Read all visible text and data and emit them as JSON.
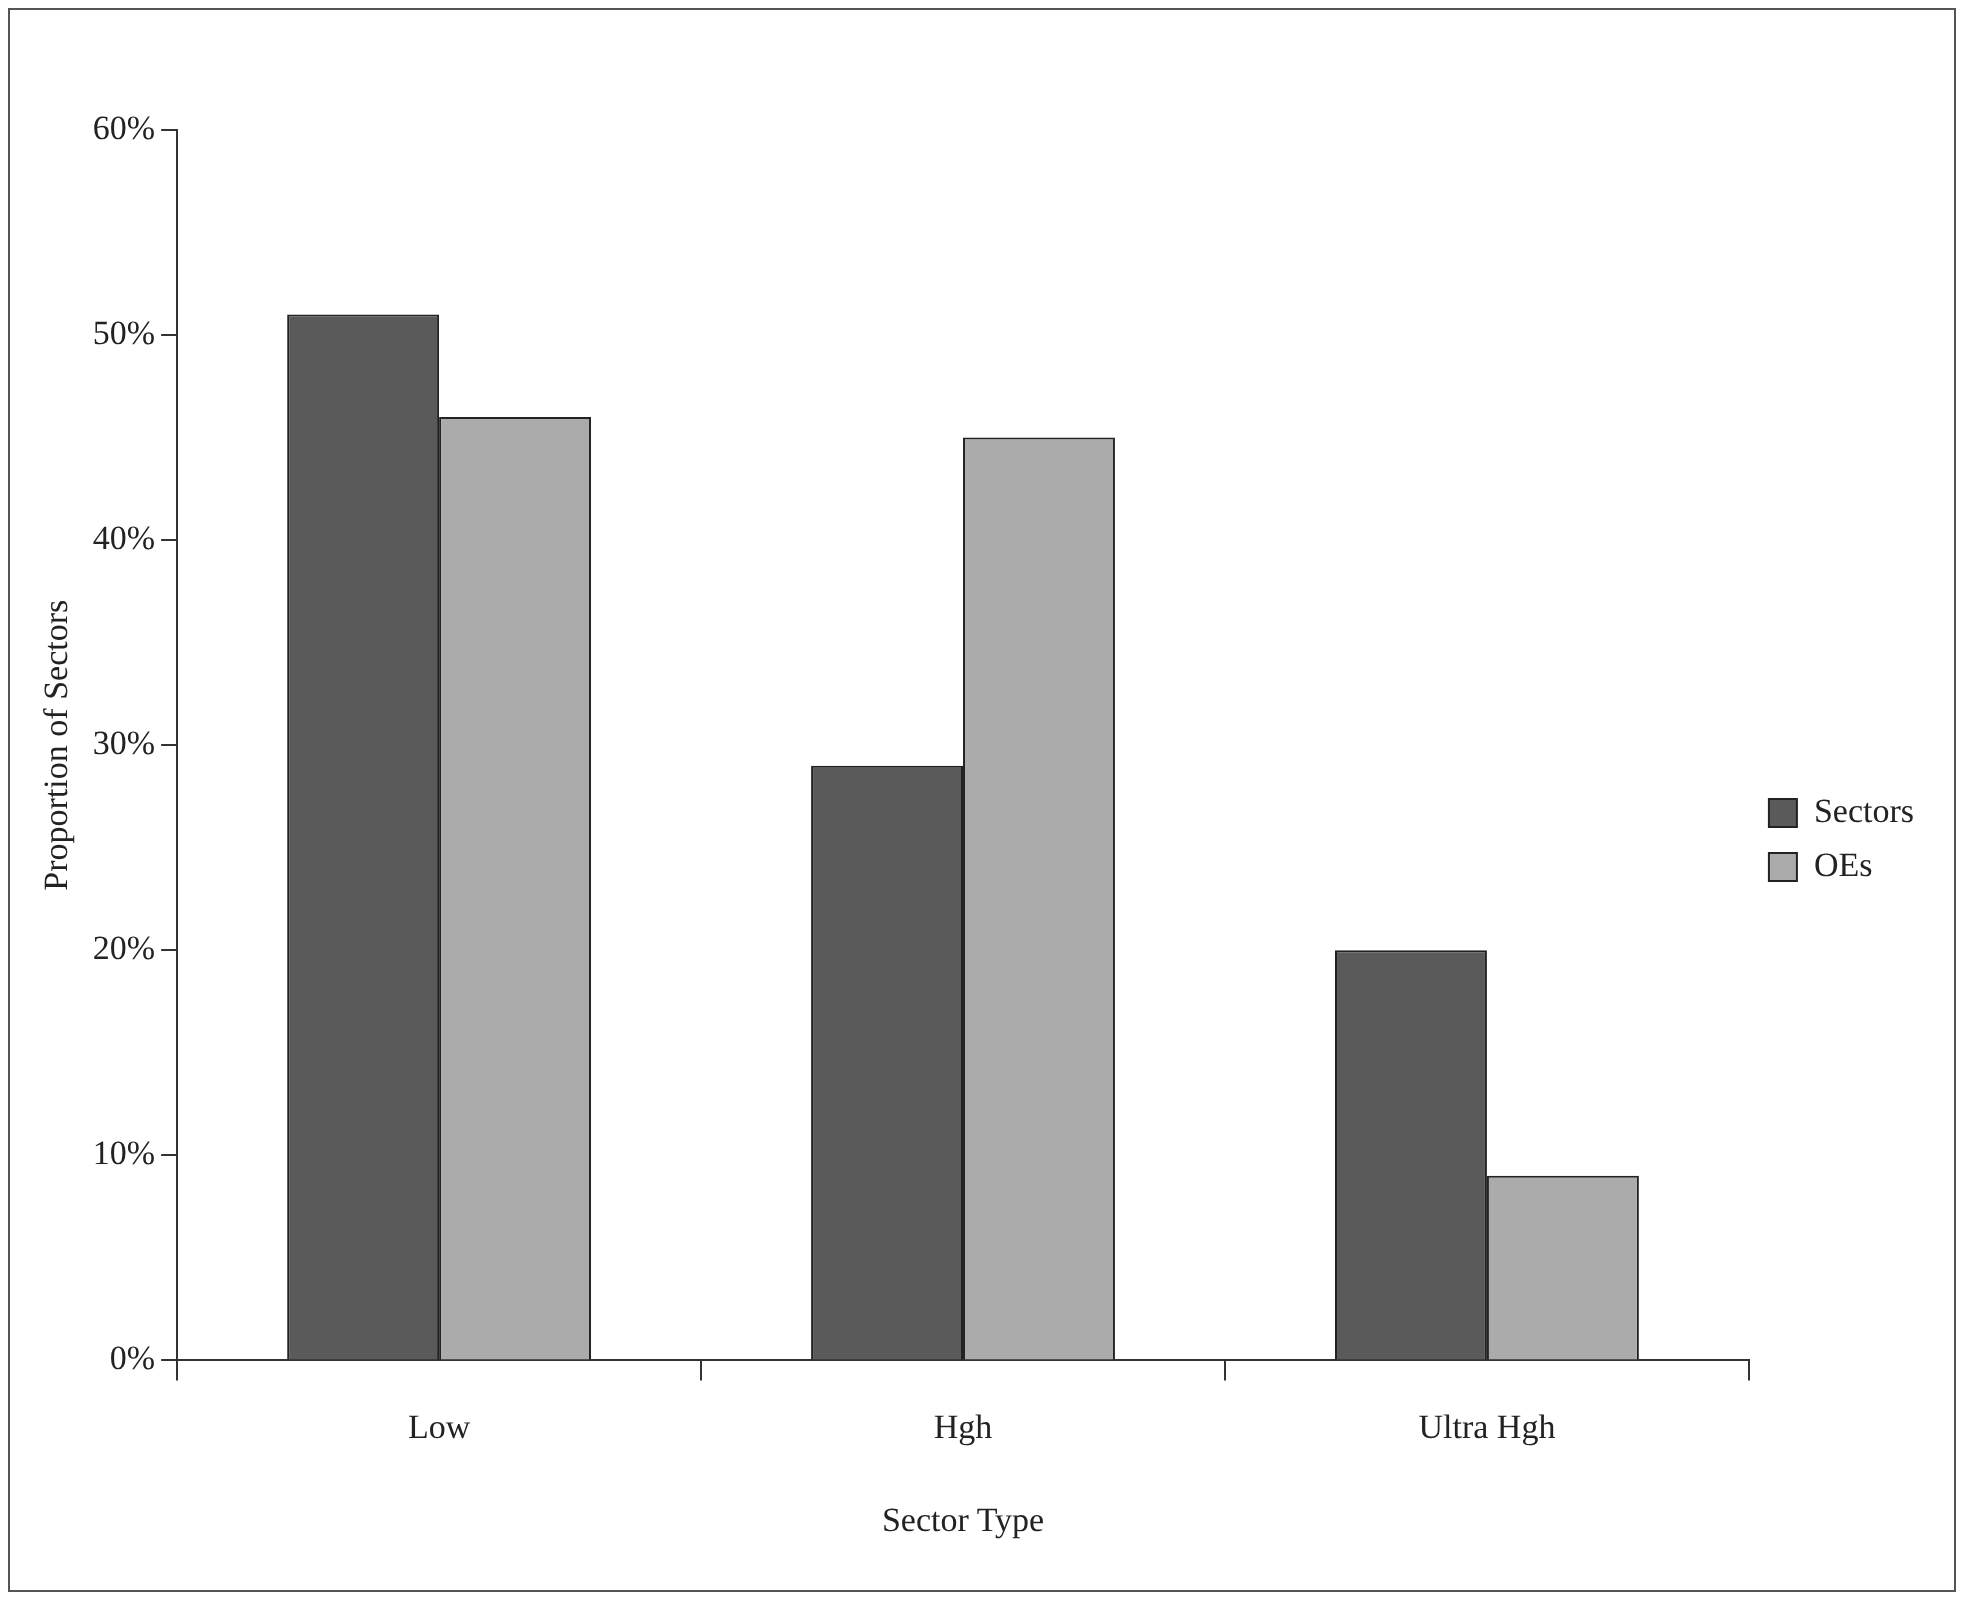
{
  "chart_data": {
    "type": "bar",
    "xlabel": "Sector Type",
    "ylabel": "Proportion of Sectors",
    "categories": [
      "Low",
      "Hgh",
      "Ultra Hgh"
    ],
    "series": [
      {
        "name": "Sectors",
        "color": "#5a5a5a",
        "values": [
          51,
          29,
          20
        ]
      },
      {
        "name": "OEs",
        "color": "#ababab",
        "values": [
          46,
          45,
          9
        ]
      }
    ],
    "ylim": [
      0,
      60
    ],
    "yticks": [
      {
        "value": 0,
        "label": "0%"
      },
      {
        "value": 10,
        "label": "10%"
      },
      {
        "value": 20,
        "label": "20%"
      },
      {
        "value": 30,
        "label": "30%"
      },
      {
        "value": 40,
        "label": "40%"
      },
      {
        "value": 50,
        "label": "50%"
      },
      {
        "value": 60,
        "label": "60%"
      }
    ],
    "grid": false,
    "legend": "right"
  }
}
